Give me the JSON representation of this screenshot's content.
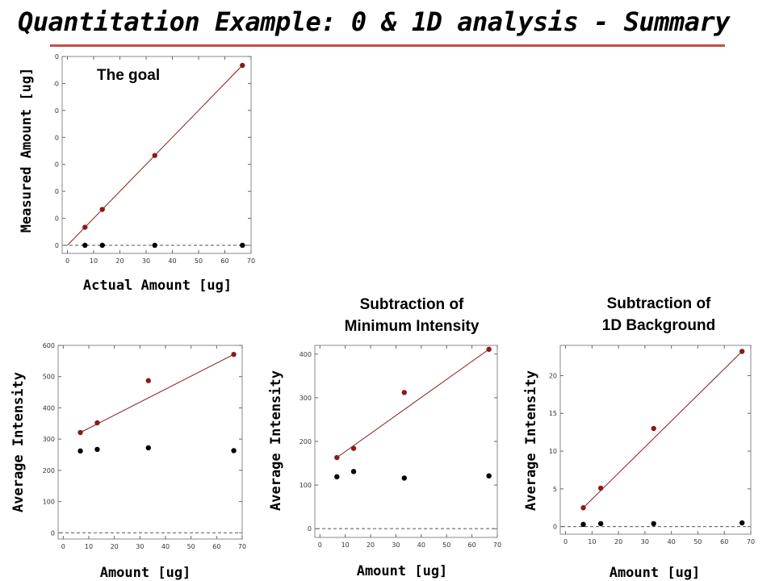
{
  "header": {
    "title": "Quantitation Example: 0 & 1D analysis - Summary"
  },
  "colors": {
    "fit_series": "#8b1a1a",
    "raw_series": "#000000",
    "title_rule": "#c0504d"
  },
  "chart_data": [
    {
      "type": "scatter",
      "annotation": "The goal",
      "xlabel": "Actual Amount [ug]",
      "ylabel": "Measured Amount [ug]",
      "xlim": [
        -2,
        70
      ],
      "ylim": [
        -3,
        70
      ],
      "xticks": [
        0,
        10,
        20,
        30,
        40,
        50,
        60,
        70
      ],
      "yticks": [
        0,
        10,
        20,
        30,
        40,
        50,
        60,
        70
      ],
      "series": [
        {
          "points": [
            [
              6.7,
              6.7
            ],
            [
              13.3,
              13.3
            ],
            [
              33.3,
              33.3
            ],
            [
              66.7,
              66.7
            ]
          ],
          "fit": [
            [
              0,
              0
            ],
            [
              66.7,
              66.7
            ]
          ],
          "color": "#8b1a1a"
        },
        {
          "points": [
            [
              6.7,
              0
            ],
            [
              13.3,
              0
            ],
            [
              33.3,
              0
            ],
            [
              66.7,
              0
            ]
          ],
          "color": "#000000"
        }
      ],
      "baseline": 0
    },
    {
      "type": "scatter",
      "annotation": "",
      "xlabel": "Amount [ug]",
      "ylabel": "Average Intensity",
      "xlim": [
        -2,
        70
      ],
      "ylim": [
        -20,
        600
      ],
      "xticks": [
        0,
        10,
        20,
        30,
        40,
        50,
        60,
        70
      ],
      "yticks": [
        0,
        100,
        200,
        300,
        400,
        500,
        600
      ],
      "series": [
        {
          "points": [
            [
              6.7,
              321
            ],
            [
              13.3,
              352
            ],
            [
              33.3,
              487
            ],
            [
              66.7,
              571
            ]
          ],
          "fit": [
            [
              6.7,
              321
            ],
            [
              66.7,
              571
            ]
          ],
          "color": "#8b1a1a"
        },
        {
          "points": [
            [
              6.7,
              262
            ],
            [
              13.3,
              267
            ],
            [
              33.3,
              272
            ],
            [
              66.7,
              263
            ]
          ],
          "color": "#000000"
        }
      ],
      "baseline": 0
    },
    {
      "type": "scatter",
      "annotation": "Subtraction of\nMinimum Intensity",
      "xlabel": "Amount [ug]",
      "ylabel": "Average Intensity",
      "xlim": [
        -2,
        70
      ],
      "ylim": [
        -20,
        420
      ],
      "xticks": [
        0,
        10,
        20,
        30,
        40,
        50,
        60,
        70
      ],
      "yticks": [
        0,
        100,
        200,
        300,
        400
      ],
      "series": [
        {
          "points": [
            [
              6.7,
              163
            ],
            [
              13.3,
              184
            ],
            [
              33.3,
              312
            ],
            [
              66.7,
              411
            ]
          ],
          "fit": [
            [
              6.7,
              163
            ],
            [
              66.7,
              411
            ]
          ],
          "color": "#8b1a1a"
        },
        {
          "points": [
            [
              6.7,
              119
            ],
            [
              13.3,
              131
            ],
            [
              33.3,
              116
            ],
            [
              66.7,
              121
            ]
          ],
          "color": "#000000"
        }
      ],
      "baseline": 0
    },
    {
      "type": "scatter",
      "annotation": "Subtraction of\n1D Background",
      "xlabel": "Amount [ug]",
      "ylabel": "Average Intensity",
      "xlim": [
        -2,
        70
      ],
      "ylim": [
        -1,
        24
      ],
      "xticks": [
        0,
        10,
        20,
        30,
        40,
        50,
        60,
        70
      ],
      "yticks": [
        0,
        5,
        10,
        15,
        20
      ],
      "series": [
        {
          "points": [
            [
              6.7,
              2.5
            ],
            [
              13.3,
              5.1
            ],
            [
              33.3,
              13
            ],
            [
              66.7,
              23.2
            ]
          ],
          "fit": [
            [
              6.7,
              2.5
            ],
            [
              66.7,
              23.2
            ]
          ],
          "color": "#8b1a1a"
        },
        {
          "points": [
            [
              6.7,
              0.3
            ],
            [
              13.3,
              0.4
            ],
            [
              33.3,
              0.4
            ],
            [
              66.7,
              0.5
            ]
          ],
          "color": "#000000"
        }
      ],
      "baseline": 0
    }
  ]
}
